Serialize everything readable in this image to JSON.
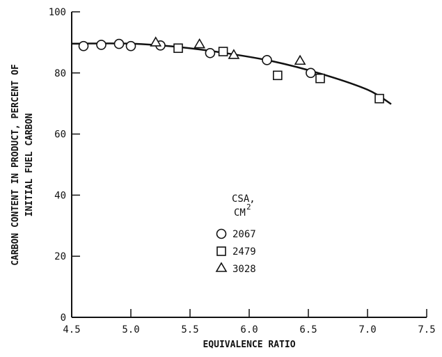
{
  "chart_data": {
    "type": "scatter",
    "xlabel": "EQUIVALENCE RATIO",
    "ylabel_lines": [
      "CARBON CONTENT IN PRODUCT, PERCENT OF",
      "INITIAL FUEL CARBON"
    ],
    "xlim": [
      4.5,
      7.5
    ],
    "ylim": [
      0,
      100
    ],
    "x_ticks": [
      4.5,
      5.0,
      5.5,
      6.0,
      6.5,
      7.0,
      7.5
    ],
    "x_tick_labels": [
      "4.5",
      "5.0",
      "5.5",
      "6.0",
      "6.5",
      "7.0",
      "7.5"
    ],
    "y_ticks": [
      0,
      20,
      40,
      60,
      80,
      100
    ],
    "y_tick_labels": [
      "0",
      "20",
      "40",
      "60",
      "80",
      "100"
    ],
    "grid": false,
    "legend": {
      "title_line1": "CSA,",
      "title_line2": "CM",
      "title_sup": "2",
      "position": "center"
    },
    "series": [
      {
        "name": "2067",
        "marker": "circle",
        "points": [
          [
            4.6,
            88.8
          ],
          [
            4.75,
            89.2
          ],
          [
            4.9,
            89.5
          ],
          [
            5.0,
            88.8
          ],
          [
            5.25,
            89.0
          ],
          [
            5.67,
            86.5
          ],
          [
            6.15,
            84.2
          ],
          [
            6.52,
            80.0
          ]
        ]
      },
      {
        "name": "2479",
        "marker": "square",
        "points": [
          [
            5.4,
            88.1
          ],
          [
            5.78,
            87.0
          ],
          [
            6.24,
            79.2
          ],
          [
            6.6,
            78.2
          ],
          [
            7.1,
            71.6
          ]
        ]
      },
      {
        "name": "3028",
        "marker": "triangle",
        "points": [
          [
            5.21,
            90.0
          ],
          [
            5.58,
            89.4
          ],
          [
            5.87,
            85.9
          ],
          [
            6.43,
            84.0
          ]
        ]
      }
    ],
    "fit_curve": [
      [
        4.5,
        89.6
      ],
      [
        5.0,
        89.6
      ],
      [
        5.4,
        88.5
      ],
      [
        5.8,
        86.5
      ],
      [
        6.2,
        83.8
      ],
      [
        6.6,
        79.8
      ],
      [
        7.0,
        74.5
      ],
      [
        7.2,
        69.8
      ]
    ]
  }
}
